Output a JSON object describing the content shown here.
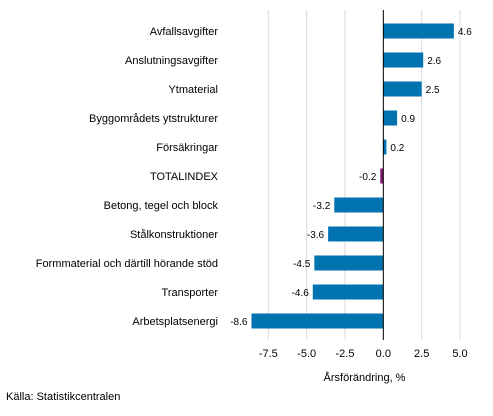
{
  "chart_data": {
    "type": "bar",
    "orientation": "horizontal",
    "categories": [
      "Avfallsavgifter",
      "Anslutningsavgifter",
      "Ytmaterial",
      "Byggområdets ytstrukturer",
      "Försäkringar",
      "TOTALINDEX",
      "Betong, tegel och block",
      "Stålkonstruktioner",
      "Formmaterial och därtill hörande stöd",
      "Transporter",
      "Arbetsplatsenergi"
    ],
    "values": [
      4.6,
      2.6,
      2.5,
      0.9,
      0.2,
      -0.2,
      -3.2,
      -3.6,
      -4.5,
      -4.6,
      -8.6
    ],
    "value_labels": [
      "4.6",
      "2.6",
      "2.5",
      "0.9",
      "0.2",
      "-0.2",
      "-3.2",
      "-3.6",
      "-4.5",
      "-4.6",
      "-8.6"
    ],
    "highlight_index": 5,
    "xlabel": "Årsförändring, %",
    "xlim": [
      -10,
      6.5
    ],
    "xticks": [
      -7.5,
      -5.0,
      -2.5,
      0.0,
      2.5,
      5.0
    ],
    "xtick_labels": [
      "-7.5",
      "-5.0",
      "-2.5",
      "0.0",
      "2.5",
      "5.0"
    ],
    "grid": "vertical",
    "colors": {
      "bar": "#0073b0",
      "highlight": "#7b1873",
      "grid": "#d9d9d9",
      "axis": "#000000"
    }
  },
  "source": "Källa: Statistikcentralen"
}
